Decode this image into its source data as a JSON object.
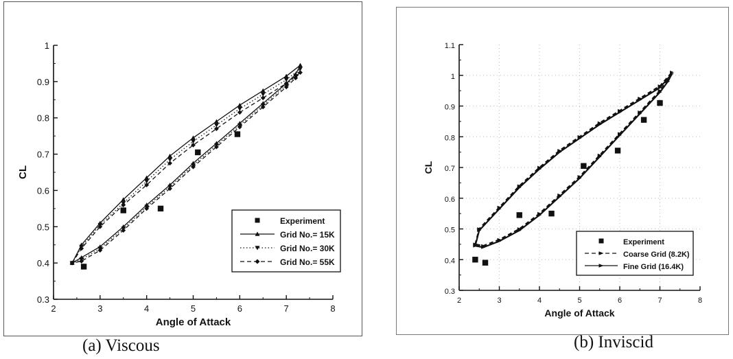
{
  "charts": [
    {
      "caption": "(a) Viscous",
      "xlabel": "Angle of Attack",
      "ylabel": "CL",
      "xlim": [
        2,
        8
      ],
      "ylim": [
        0.3,
        1
      ],
      "xticks": [
        "2",
        "3",
        "4",
        "5",
        "6",
        "7",
        "8"
      ],
      "yticks": [
        "0.3",
        "0.4",
        "0.5",
        "0.6",
        "0.7",
        "0.8",
        "0.9",
        "1"
      ],
      "grid": false,
      "legend": [
        "Experiment",
        "Grid No.= 15K",
        "Grid No.= 30K",
        "Grid No.= 55K"
      ]
    },
    {
      "caption": "(b) Inviscid",
      "xlabel": "Angle of Attack",
      "ylabel": "CL",
      "xlim": [
        2,
        8
      ],
      "ylim": [
        0.3,
        1.1
      ],
      "xticks": [
        "2",
        "3",
        "4",
        "5",
        "6",
        "7",
        "8"
      ],
      "yticks": [
        "0.3",
        "0.4",
        "0.5",
        "0.6",
        "0.7",
        "0.8",
        "0.9",
        "1",
        "1.1"
      ],
      "grid": true,
      "legend": [
        "Experiment",
        "Coarse Grid (8.2K)",
        "Fine Grid (16.4K)"
      ]
    }
  ],
  "chart_data": [
    {
      "type": "line",
      "xlabel": "Angle of Attack",
      "ylabel": "CL",
      "xlim": [
        2,
        8
      ],
      "ylim": [
        0.3,
        1
      ],
      "grid": false,
      "legend_position": "bottom-right",
      "series": [
        {
          "name": "Experiment",
          "kind": "scatter",
          "marker": "square",
          "x": [
            2.65,
            3.5,
            4.3,
            5.1,
            5.95
          ],
          "y": [
            0.39,
            0.545,
            0.55,
            0.705,
            0.755
          ]
        },
        {
          "name": "Grid No.= 15K",
          "kind": "loop",
          "marker": "triangle",
          "dash": "solid",
          "x": [
            2.4,
            2.6,
            3.0,
            3.5,
            4.0,
            4.5,
            5.0,
            5.5,
            6.0,
            6.5,
            7.0,
            7.3,
            7.2,
            7.0,
            6.5,
            6.0,
            5.5,
            5.0,
            4.5,
            4.0,
            3.5,
            3.0,
            2.6,
            2.4
          ],
          "y": [
            0.4,
            0.45,
            0.51,
            0.575,
            0.635,
            0.695,
            0.745,
            0.79,
            0.835,
            0.875,
            0.915,
            0.945,
            0.92,
            0.895,
            0.84,
            0.785,
            0.73,
            0.675,
            0.615,
            0.56,
            0.5,
            0.445,
            0.415,
            0.4
          ]
        },
        {
          "name": "Grid No.= 30K",
          "kind": "loop",
          "marker": "triangle-down",
          "dash": "dotted",
          "x": [
            2.4,
            2.6,
            3.0,
            3.5,
            4.0,
            4.5,
            5.0,
            5.5,
            6.0,
            6.5,
            7.0,
            7.3,
            7.2,
            7.0,
            6.5,
            6.0,
            5.5,
            5.0,
            4.5,
            4.0,
            3.5,
            3.0,
            2.6,
            2.4
          ],
          "y": [
            0.4,
            0.445,
            0.505,
            0.565,
            0.625,
            0.685,
            0.735,
            0.78,
            0.825,
            0.865,
            0.905,
            0.935,
            0.915,
            0.89,
            0.835,
            0.78,
            0.725,
            0.67,
            0.61,
            0.555,
            0.495,
            0.44,
            0.41,
            0.4
          ]
        },
        {
          "name": "Grid No.= 55K",
          "kind": "loop",
          "marker": "diamond",
          "dash": "dashed",
          "x": [
            2.4,
            2.6,
            3.0,
            3.5,
            4.0,
            4.5,
            5.0,
            5.5,
            6.0,
            6.5,
            7.0,
            7.3,
            7.2,
            7.0,
            6.5,
            6.0,
            5.5,
            5.0,
            4.5,
            4.0,
            3.5,
            3.0,
            2.6,
            2.4
          ],
          "y": [
            0.4,
            0.44,
            0.5,
            0.56,
            0.615,
            0.675,
            0.725,
            0.77,
            0.815,
            0.855,
            0.895,
            0.925,
            0.91,
            0.885,
            0.83,
            0.775,
            0.72,
            0.665,
            0.605,
            0.55,
            0.49,
            0.435,
            0.405,
            0.4
          ]
        }
      ]
    },
    {
      "type": "line",
      "xlabel": "Angle of Attack",
      "ylabel": "CL",
      "xlim": [
        2,
        8
      ],
      "ylim": [
        0.3,
        1.1
      ],
      "grid": true,
      "legend_position": "bottom-right",
      "series": [
        {
          "name": "Experiment",
          "kind": "scatter",
          "marker": "square",
          "x": [
            2.4,
            2.65,
            3.5,
            4.3,
            5.1,
            5.95,
            6.6,
            7.0
          ],
          "y": [
            0.4,
            0.39,
            0.545,
            0.55,
            0.705,
            0.755,
            0.855,
            0.91
          ]
        },
        {
          "name": "Coarse Grid (8.2K)",
          "kind": "loop",
          "marker": "arrow",
          "dash": "dashed",
          "x": [
            2.4,
            2.5,
            3.0,
            3.5,
            4.0,
            4.5,
            5.0,
            5.5,
            6.0,
            6.5,
            7.0,
            7.3,
            7.2,
            7.0,
            6.5,
            6.0,
            5.5,
            5.0,
            4.5,
            4.0,
            3.5,
            3.0,
            2.6,
            2.4
          ],
          "y": [
            0.45,
            0.5,
            0.57,
            0.64,
            0.7,
            0.755,
            0.8,
            0.845,
            0.885,
            0.925,
            0.965,
            1.01,
            0.985,
            0.95,
            0.88,
            0.81,
            0.74,
            0.67,
            0.61,
            0.55,
            0.5,
            0.465,
            0.445,
            0.45
          ]
        },
        {
          "name": "Fine Grid (16.4K)",
          "kind": "loop",
          "marker": "arrow",
          "dash": "solid",
          "x": [
            2.4,
            2.5,
            3.0,
            3.5,
            4.0,
            4.5,
            5.0,
            5.5,
            6.0,
            6.5,
            7.0,
            7.3,
            7.2,
            7.0,
            6.5,
            6.0,
            5.5,
            5.0,
            4.5,
            4.0,
            3.5,
            3.0,
            2.6,
            2.4
          ],
          "y": [
            0.445,
            0.495,
            0.565,
            0.635,
            0.695,
            0.75,
            0.795,
            0.84,
            0.88,
            0.92,
            0.96,
            1.005,
            0.98,
            0.945,
            0.875,
            0.805,
            0.735,
            0.665,
            0.605,
            0.545,
            0.495,
            0.46,
            0.44,
            0.445
          ]
        }
      ]
    }
  ]
}
